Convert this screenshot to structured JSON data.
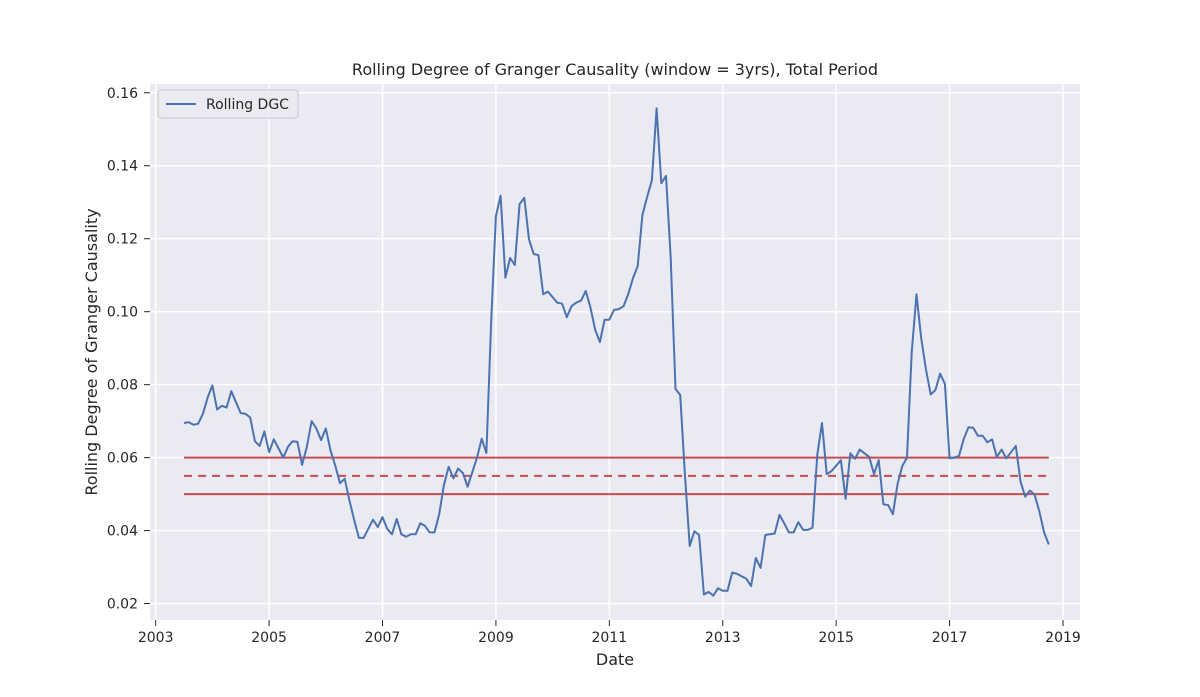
{
  "chart_data": {
    "type": "line",
    "title": "Rolling Degree of Granger Causality (window = 3yrs), Total Period",
    "xlabel": "Date",
    "ylabel": "Rolling Degree of Granger Causality",
    "xlim": [
      2002.9,
      2019.3
    ],
    "ylim": [
      0.0155,
      0.1624
    ],
    "x_ticks": [
      2003,
      2005,
      2007,
      2009,
      2011,
      2013,
      2015,
      2017,
      2019
    ],
    "y_ticks": [
      0.02,
      0.04,
      0.06,
      0.08,
      0.1,
      0.12,
      0.14,
      0.16
    ],
    "y_tick_labels": [
      "0.02",
      "0.04",
      "0.06",
      "0.08",
      "0.10",
      "0.12",
      "0.14",
      "0.16"
    ],
    "grid": true,
    "legend_position": "top-left",
    "colors": {
      "series": "#4c72b0",
      "threshold": "#c44e52",
      "background": "#eaeaf2",
      "grid": "#ffffff"
    },
    "series": [
      {
        "name": "Rolling DGC",
        "x": [
          2003.5,
          2003.583,
          2003.667,
          2003.75,
          2003.833,
          2003.917,
          2004.0,
          2004.083,
          2004.167,
          2004.25,
          2004.333,
          2004.417,
          2004.5,
          2004.583,
          2004.667,
          2004.75,
          2004.833,
          2004.917,
          2005.0,
          2005.083,
          2005.167,
          2005.25,
          2005.333,
          2005.417,
          2005.5,
          2005.583,
          2005.667,
          2005.75,
          2005.833,
          2005.917,
          2006.0,
          2006.083,
          2006.167,
          2006.25,
          2006.333,
          2006.417,
          2006.5,
          2006.583,
          2006.667,
          2006.75,
          2006.833,
          2006.917,
          2007.0,
          2007.083,
          2007.167,
          2007.25,
          2007.333,
          2007.417,
          2007.5,
          2007.583,
          2007.667,
          2007.75,
          2007.833,
          2007.917,
          2008.0,
          2008.083,
          2008.167,
          2008.25,
          2008.333,
          2008.417,
          2008.5,
          2008.583,
          2008.667,
          2008.75,
          2008.833,
          2008.917,
          2009.0,
          2009.083,
          2009.167,
          2009.25,
          2009.333,
          2009.417,
          2009.5,
          2009.583,
          2009.667,
          2009.75,
          2009.833,
          2009.917,
          2010.0,
          2010.083,
          2010.167,
          2010.25,
          2010.333,
          2010.417,
          2010.5,
          2010.583,
          2010.667,
          2010.75,
          2010.833,
          2010.917,
          2011.0,
          2011.083,
          2011.167,
          2011.25,
          2011.333,
          2011.417,
          2011.5,
          2011.583,
          2011.667,
          2011.75,
          2011.833,
          2011.917,
          2012.0,
          2012.083,
          2012.167,
          2012.25,
          2012.333,
          2012.417,
          2012.5,
          2012.583,
          2012.667,
          2012.75,
          2012.833,
          2012.917,
          2013.0,
          2013.083,
          2013.167,
          2013.25,
          2013.333,
          2013.417,
          2013.5,
          2013.583,
          2013.667,
          2013.75,
          2013.833,
          2013.917,
          2014.0,
          2014.083,
          2014.167,
          2014.25,
          2014.333,
          2014.417,
          2014.5,
          2014.583,
          2014.667,
          2014.75,
          2014.833,
          2014.917,
          2015.0,
          2015.083,
          2015.167,
          2015.25,
          2015.333,
          2015.417,
          2015.5,
          2015.583,
          2015.667,
          2015.75,
          2015.833,
          2015.917,
          2016.0,
          2016.083,
          2016.167,
          2016.25,
          2016.333,
          2016.417,
          2016.5,
          2016.583,
          2016.667,
          2016.75,
          2016.833,
          2016.917,
          2017.0,
          2017.083,
          2017.167,
          2017.25,
          2017.333,
          2017.417,
          2017.5,
          2017.583,
          2017.667,
          2017.75,
          2017.833,
          2017.917,
          2018.0,
          2018.083,
          2018.167,
          2018.25,
          2018.333,
          2018.417,
          2018.5,
          2018.583,
          2018.667,
          2018.75
        ],
        "values": [
          0.0695,
          0.0697,
          0.069,
          0.0693,
          0.072,
          0.0765,
          0.0798,
          0.0732,
          0.0742,
          0.0737,
          0.0782,
          0.0752,
          0.0722,
          0.072,
          0.071,
          0.0645,
          0.0632,
          0.0672,
          0.0615,
          0.065,
          0.0625,
          0.06,
          0.063,
          0.0645,
          0.0643,
          0.058,
          0.063,
          0.07,
          0.068,
          0.0648,
          0.068,
          0.062,
          0.0578,
          0.053,
          0.0542,
          0.0483,
          0.043,
          0.038,
          0.038,
          0.0405,
          0.043,
          0.041,
          0.0437,
          0.0405,
          0.039,
          0.0432,
          0.039,
          0.0383,
          0.039,
          0.039,
          0.042,
          0.0413,
          0.0395,
          0.0395,
          0.0445,
          0.0525,
          0.0575,
          0.0543,
          0.057,
          0.0558,
          0.052,
          0.056,
          0.06,
          0.0652,
          0.0613,
          0.0975,
          0.1262,
          0.1318,
          0.1093,
          0.1147,
          0.1128,
          0.1295,
          0.1312,
          0.1198,
          0.1158,
          0.1155,
          0.1048,
          0.1055,
          0.104,
          0.1025,
          0.1022,
          0.0985,
          0.1015,
          0.1025,
          0.103,
          0.1057,
          0.1012,
          0.095,
          0.0917,
          0.0978,
          0.0978,
          0.1005,
          0.1007,
          0.1015,
          0.1048,
          0.1092,
          0.1125,
          0.1265,
          0.1315,
          0.136,
          0.1557,
          0.1352,
          0.1372,
          0.1148,
          0.0788,
          0.0772,
          0.0555,
          0.0358,
          0.0398,
          0.0388,
          0.0225,
          0.0232,
          0.0222,
          0.0242,
          0.0235,
          0.0235,
          0.0285,
          0.0282,
          0.0275,
          0.0268,
          0.0248,
          0.0325,
          0.0298,
          0.0388,
          0.039,
          0.0392,
          0.0443,
          0.042,
          0.0395,
          0.0395,
          0.0423,
          0.0402,
          0.0402,
          0.0408,
          0.0608,
          0.0695,
          0.0555,
          0.0563,
          0.0578,
          0.0593,
          0.0487,
          0.0612,
          0.0597,
          0.0622,
          0.0612,
          0.0602,
          0.0555,
          0.0593,
          0.0472,
          0.047,
          0.0445,
          0.0528,
          0.0577,
          0.06,
          0.0888,
          0.1048,
          0.0927,
          0.0843,
          0.0773,
          0.0785,
          0.083,
          0.0802,
          0.0598,
          0.06,
          0.0605,
          0.0652,
          0.0683,
          0.0682,
          0.066,
          0.066,
          0.0642,
          0.065,
          0.0602,
          0.0622,
          0.0598,
          0.0615,
          0.0632,
          0.0535,
          0.0493,
          0.051,
          0.0498,
          0.0453,
          0.0395,
          0.0362
        ]
      }
    ],
    "threshold_lines": [
      {
        "y": 0.06,
        "x_start": 2003.5,
        "x_end": 2018.75,
        "style": "solid"
      },
      {
        "y": 0.055,
        "x_start": 2003.5,
        "x_end": 2018.75,
        "style": "dashed"
      },
      {
        "y": 0.05,
        "x_start": 2003.5,
        "x_end": 2018.75,
        "style": "solid"
      }
    ]
  }
}
